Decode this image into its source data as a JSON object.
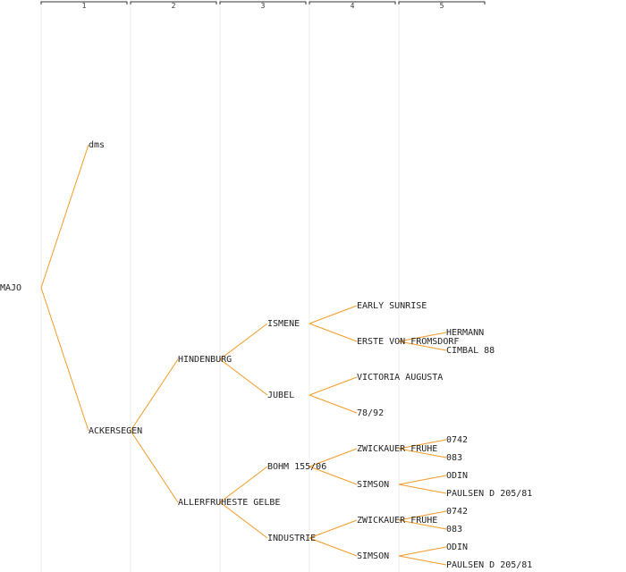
{
  "generations": [
    "1",
    "2",
    "3",
    "4",
    "5"
  ],
  "colors": {
    "edge": "#f59a23",
    "text": "#222222",
    "column_line": "#ececec"
  },
  "nodes": [
    {
      "id": "majo",
      "label": "MAJO",
      "gen": 0
    },
    {
      "id": "dms",
      "label": "dms",
      "gen": 1,
      "parent": "majo"
    },
    {
      "id": "ackersegen",
      "label": "ACKERSEGEN",
      "gen": 1,
      "parent": "majo"
    },
    {
      "id": "hindenburg",
      "label": "HINDENBURG",
      "gen": 2,
      "parent": "ackersegen"
    },
    {
      "id": "allerfr",
      "label": "ALLERFRUHESTE GELBE",
      "gen": 2,
      "parent": "ackersegen"
    },
    {
      "id": "ismene",
      "label": "ISMENE",
      "gen": 3,
      "parent": "hindenburg"
    },
    {
      "id": "jubel",
      "label": "JUBEL",
      "gen": 3,
      "parent": "hindenburg"
    },
    {
      "id": "bohm",
      "label": "BOHM 155/06",
      "gen": 3,
      "parent": "allerfr"
    },
    {
      "id": "industrie",
      "label": "INDUSTRIE",
      "gen": 3,
      "parent": "allerfr"
    },
    {
      "id": "early",
      "label": "EARLY SUNRISE",
      "gen": 4,
      "parent": "ismene"
    },
    {
      "id": "erste",
      "label": "ERSTE VON FROMSDORF",
      "gen": 4,
      "parent": "ismene"
    },
    {
      "id": "victoria",
      "label": "VICTORIA AUGUSTA",
      "gen": 4,
      "parent": "jubel"
    },
    {
      "id": "n7892",
      "label": "78/92",
      "gen": 4,
      "parent": "jubel"
    },
    {
      "id": "zw1",
      "label": "ZWICKAUER FRUHE",
      "gen": 4,
      "parent": "bohm"
    },
    {
      "id": "sim1",
      "label": "SIMSON",
      "gen": 4,
      "parent": "bohm"
    },
    {
      "id": "zw2",
      "label": "ZWICKAUER FRUHE",
      "gen": 4,
      "parent": "industrie"
    },
    {
      "id": "sim2",
      "label": "SIMSON",
      "gen": 4,
      "parent": "industrie"
    },
    {
      "id": "hermann",
      "label": "HERMANN",
      "gen": 5,
      "parent": "erste"
    },
    {
      "id": "cimbal",
      "label": "CIMBAL 88",
      "gen": 5,
      "parent": "erste"
    },
    {
      "id": "a0742",
      "label": "0742",
      "gen": 5,
      "parent": "zw1"
    },
    {
      "id": "a083",
      "label": "083",
      "gen": 5,
      "parent": "zw1"
    },
    {
      "id": "odin1",
      "label": "ODIN",
      "gen": 5,
      "parent": "sim1"
    },
    {
      "id": "paul1",
      "label": "PAULSEN D 205/81",
      "gen": 5,
      "parent": "sim1"
    },
    {
      "id": "b0742",
      "label": "0742",
      "gen": 5,
      "parent": "zw2"
    },
    {
      "id": "b083",
      "label": "083",
      "gen": 5,
      "parent": "zw2"
    },
    {
      "id": "odin2",
      "label": "ODIN",
      "gen": 5,
      "parent": "sim2"
    },
    {
      "id": "paul2",
      "label": "PAULSEN D 205/81",
      "gen": 5,
      "parent": "sim2"
    }
  ]
}
